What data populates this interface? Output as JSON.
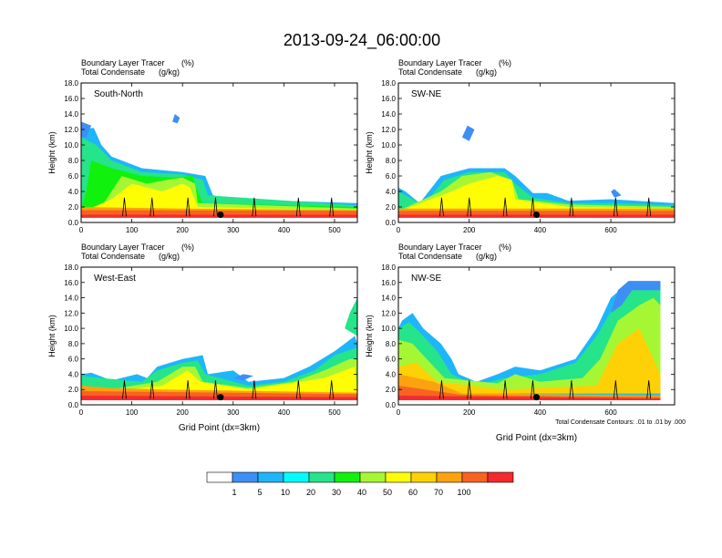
{
  "title": "2013-09-24_06:00:00",
  "chart_data": [
    {
      "type": "heatmap",
      "panel_label": "South-North",
      "field_label_1": "Boundary Layer Tracer",
      "field_unit_1": "(%)",
      "field_label_2": "Total Condensate",
      "field_unit_2": "(g/kg)",
      "ylabel": "Height (km)",
      "xlabel": "",
      "xlim": [
        0,
        545
      ],
      "ylim": [
        0,
        18
      ],
      "xticks": [
        "0",
        "100",
        "200",
        "300",
        "400",
        "500"
      ],
      "yticks": [
        "0.0",
        "2.0",
        "4.0",
        "6.0",
        "8.0",
        "10.0",
        "12.0",
        "14.0",
        "16.0",
        "18.0"
      ],
      "marker": {
        "x": 275,
        "y": 1.0
      }
    },
    {
      "type": "heatmap",
      "panel_label": "SW-NE",
      "field_label_1": "Boundary Layer Tracer",
      "field_unit_1": "(%)",
      "field_label_2": "Total Condensate",
      "field_unit_2": "(g/kg)",
      "ylabel": "Height (km)",
      "xlabel": "",
      "xlim": [
        0,
        780
      ],
      "ylim": [
        0,
        18
      ],
      "xticks": [
        "0",
        "200",
        "400",
        "600"
      ],
      "yticks": [
        "0.0",
        "2.0",
        "4.0",
        "6.0",
        "8.0",
        "10.0",
        "12.0",
        "14.0",
        "16.0",
        "18.0"
      ],
      "marker": {
        "x": 390,
        "y": 1.0
      }
    },
    {
      "type": "heatmap",
      "panel_label": "West-East",
      "field_label_1": "Boundary Layer Tracer",
      "field_unit_1": "(%)",
      "field_label_2": "Total Condensate",
      "field_unit_2": "(g/kg)",
      "ylabel": "Height (km)",
      "xlabel": "Grid Point (dx=3km)",
      "xlim": [
        0,
        545
      ],
      "ylim": [
        0,
        18
      ],
      "xticks": [
        "0",
        "100",
        "200",
        "300",
        "400",
        "500"
      ],
      "yticks": [
        "0.0",
        "2.0",
        "4.0",
        "6.0",
        "8.0",
        "10.0",
        "12.0",
        "14.0",
        "16.0",
        "18.0"
      ],
      "marker": {
        "x": 275,
        "y": 1.0
      }
    },
    {
      "type": "heatmap",
      "panel_label": "NW-SE",
      "field_label_1": "Boundary Layer Tracer",
      "field_unit_1": "(%)",
      "field_label_2": "Total Condensate",
      "field_unit_2": "(g/kg)",
      "ylabel": "Height (km)",
      "xlabel": "Grid Point (dx=3km)",
      "xlim": [
        0,
        780
      ],
      "ylim": [
        0,
        18
      ],
      "xticks": [
        "0",
        "200",
        "400",
        "600"
      ],
      "yticks": [
        "0.0",
        "2.0",
        "4.0",
        "6.0",
        "8.0",
        "10.0",
        "12.0",
        "14.0",
        "16.0",
        "18.0"
      ],
      "marker": {
        "x": 390,
        "y": 1.0
      },
      "contour_note": "Total Condensate Contours: .01 to .01 by .000"
    }
  ],
  "colorbar": {
    "levels": [
      "1",
      "5",
      "10",
      "20",
      "30",
      "40",
      "50",
      "60",
      "70",
      "100"
    ],
    "colors": [
      "#ffffff",
      "#3d8ff5",
      "#1fb5fa",
      "#00fdfc",
      "#25e48a",
      "#11f10e",
      "#a6f733",
      "#fffd03",
      "#fdd105",
      "#fba30e",
      "#f86322",
      "#f62a2e"
    ]
  }
}
